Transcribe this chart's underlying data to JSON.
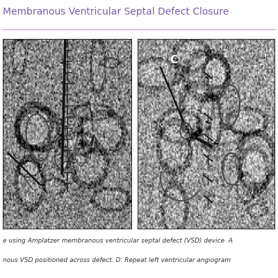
{
  "title": "Membranous Ventricular Septal Defect Closure",
  "title_color": "#7B5EA7",
  "title_fontsize": 10,
  "bg_color": "#FFFFFF",
  "divider_color": "#C8A0D0",
  "caption_line1": "e using Amplatzer membranous ventricular septal defect (VSD) device. A",
  "caption_line2": "nous VSD positioned across defect. D: Repeat left ventricular angiogram",
  "caption_color": "#333333",
  "caption_fontsize": 6.5,
  "panel_c_label": "C",
  "panel_c_label_color": "#FFFFFF"
}
